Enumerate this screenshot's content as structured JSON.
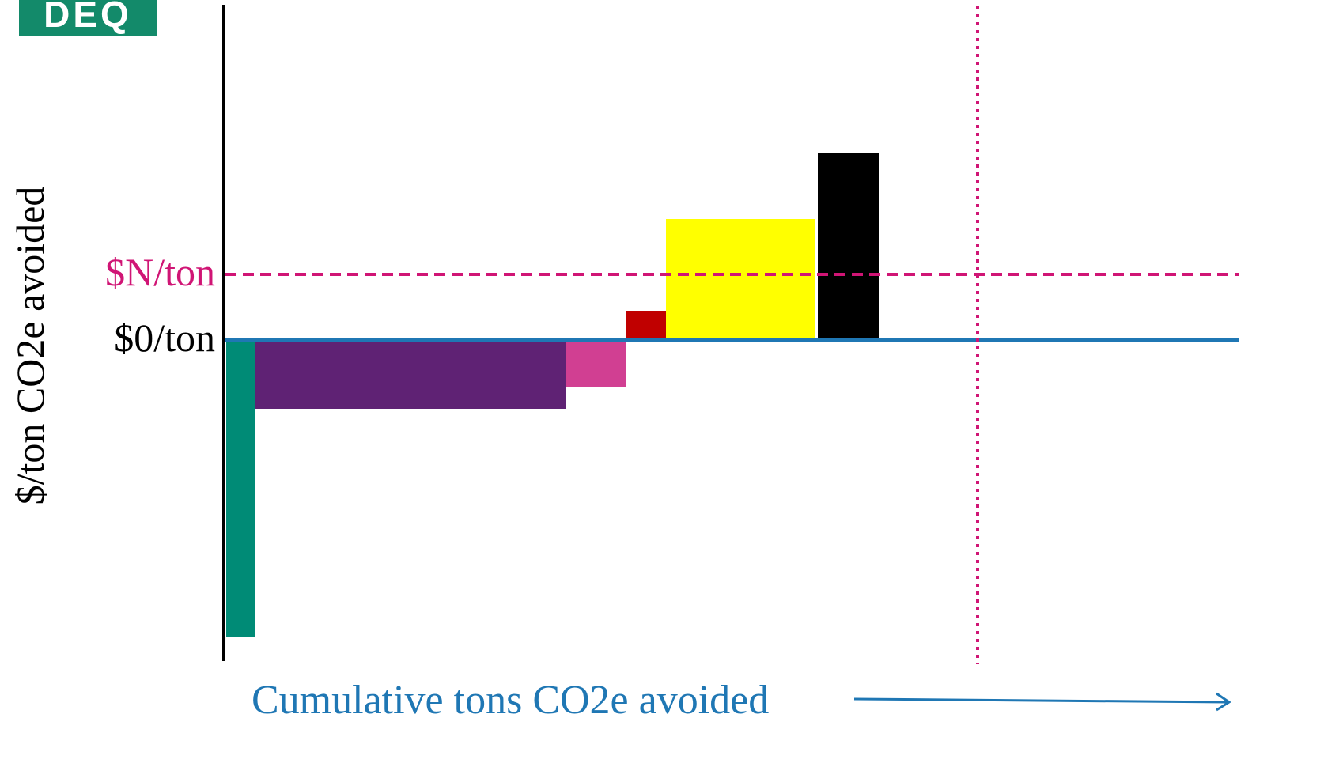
{
  "logo": {
    "text": "DEQ",
    "color": "#138a6a"
  },
  "chart_data": {
    "type": "bar",
    "title": "",
    "xlabel": "Cumulative tons CO2e avoided",
    "ylabel": "$/ton CO2e avoided",
    "reference_lines": {
      "zero": {
        "label": "$0/ton",
        "value": 0,
        "color": "#1f77b4"
      },
      "price": {
        "label": "$N/ton",
        "value": 8.3,
        "color": "#d01575"
      },
      "cumulative_target": {
        "x": 95.3,
        "color": "#d01575"
      }
    },
    "xlim": [
      0,
      128.5
    ],
    "ylim": [
      -40,
      40
    ],
    "series": [
      {
        "x_start": 0.3,
        "x_end": 4.0,
        "value": -37.6,
        "color": "#008b76"
      },
      {
        "x_start": 4.0,
        "x_end": 43.3,
        "value": -8.7,
        "color": "#5f2274"
      },
      {
        "x_start": 43.3,
        "x_end": 50.9,
        "value": -5.9,
        "color": "#d13f92"
      },
      {
        "x_start": 50.9,
        "x_end": 55.9,
        "value": 3.7,
        "color": "#c00000"
      },
      {
        "x_start": 55.9,
        "x_end": 74.7,
        "value": 15.3,
        "color": "#ffff00"
      },
      {
        "x_start": 75.1,
        "x_end": 82.8,
        "value": 23.7,
        "color": "#000000"
      }
    ]
  }
}
